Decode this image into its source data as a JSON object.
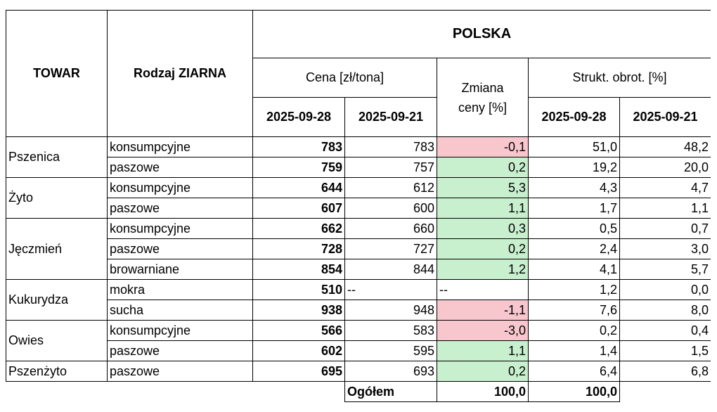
{
  "header": {
    "towar": "TOWAR",
    "rodzaj": "Rodzaj ZIARNA",
    "polska": "POLSKA",
    "cena": "Cena [zł/tona]",
    "zmiana": "Zmiana ceny [%]",
    "strukt": "Strukt. obrot. [%]",
    "dates": [
      "2025-09-28",
      "2025-09-21",
      "2025-09-28",
      "2025-09-21"
    ]
  },
  "groups": [
    {
      "name": "Pszenica",
      "rows": [
        [
          "konsumpcyjne",
          "783",
          "783",
          "-0,1",
          "51,0",
          "48,2"
        ],
        [
          "paszowe",
          "759",
          "757",
          "0,2",
          "19,2",
          "20,0"
        ]
      ]
    },
    {
      "name": "Żyto",
      "rows": [
        [
          "konsumpcyjne",
          "644",
          "612",
          "5,3",
          "4,3",
          "4,7"
        ],
        [
          "paszowe",
          "607",
          "600",
          "1,1",
          "1,7",
          "1,1"
        ]
      ]
    },
    {
      "name": "Jęczmień",
      "rows": [
        [
          "konsumpcyjne",
          "662",
          "660",
          "0,3",
          "0,5",
          "0,7"
        ],
        [
          "paszowe",
          "728",
          "727",
          "0,2",
          "2,4",
          "3,0"
        ],
        [
          "browarniane",
          "854",
          "844",
          "1,2",
          "4,1",
          "5,7"
        ]
      ]
    },
    {
      "name": "Kukurydza",
      "rows": [
        [
          "mokra",
          "510",
          "--",
          "--",
          "1,2",
          "0,0"
        ],
        [
          "sucha",
          "938",
          "948",
          "-1,1",
          "7,6",
          "8,0"
        ]
      ]
    },
    {
      "name": "Owies",
      "rows": [
        [
          "konsumpcyjne",
          "566",
          "583",
          "-3,0",
          "0,2",
          "0,4"
        ],
        [
          "paszowe",
          "602",
          "595",
          "1,1",
          "1,4",
          "1,5"
        ]
      ]
    },
    {
      "name": "Pszenżyto",
      "rows": [
        [
          "paszowe",
          "695",
          "693",
          "0,2",
          "6,4",
          "6,8"
        ]
      ]
    }
  ],
  "total": {
    "label": "Ogółem",
    "values": [
      "100,0",
      "100,0"
    ]
  }
}
